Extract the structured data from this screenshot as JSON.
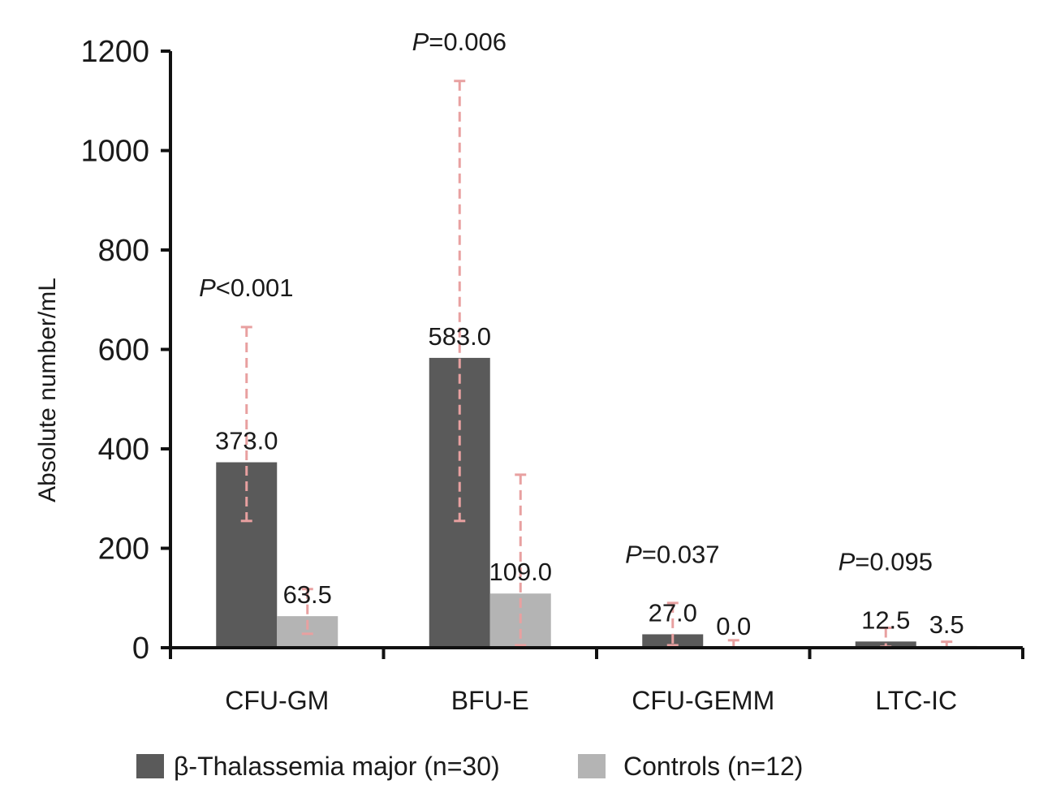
{
  "chart_data": {
    "type": "bar",
    "title": "",
    "xlabel": "",
    "ylabel": "Absolute number/mL",
    "ylim": [
      0,
      1200
    ],
    "yticks": [
      "0",
      "200",
      "400",
      "600",
      "800",
      "1000",
      "1200"
    ],
    "categories": [
      "CFU-GM",
      "BFU-E",
      "CFU-GEMM",
      "LTC-IC"
    ],
    "series": [
      {
        "name": "β-Thalassemia major (n=30)",
        "color": "#5a5a5a",
        "values": [
          373.0,
          583.0,
          27.0,
          12.5
        ],
        "labels": [
          "373.0",
          "583.0",
          "27.0",
          "12.5"
        ],
        "error_low": [
          255,
          255,
          5,
          2
        ],
        "error_high": [
          645,
          1140,
          90,
          40
        ]
      },
      {
        "name": "Controls (n=12)",
        "color": "#b4b4b4",
        "values": [
          63.5,
          109.0,
          0.0,
          3.5
        ],
        "labels": [
          "63.5",
          "109.0",
          "0.0",
          "3.5"
        ],
        "error_low": [
          28,
          5,
          0,
          0
        ],
        "error_high": [
          118,
          348,
          15,
          12
        ]
      }
    ],
    "error_bar_color": "#e8a0a0",
    "annotations": [
      {
        "category": "CFU-GM",
        "prefix": "P",
        "text": "<0.001"
      },
      {
        "category": "BFU-E",
        "prefix": "P",
        "text": "=0.006"
      },
      {
        "category": "CFU-GEMM",
        "prefix": "P",
        "text": "=0.037"
      },
      {
        "category": "LTC-IC",
        "prefix": "P",
        "text": "=0.095"
      }
    ],
    "legend_position": "bottom"
  }
}
